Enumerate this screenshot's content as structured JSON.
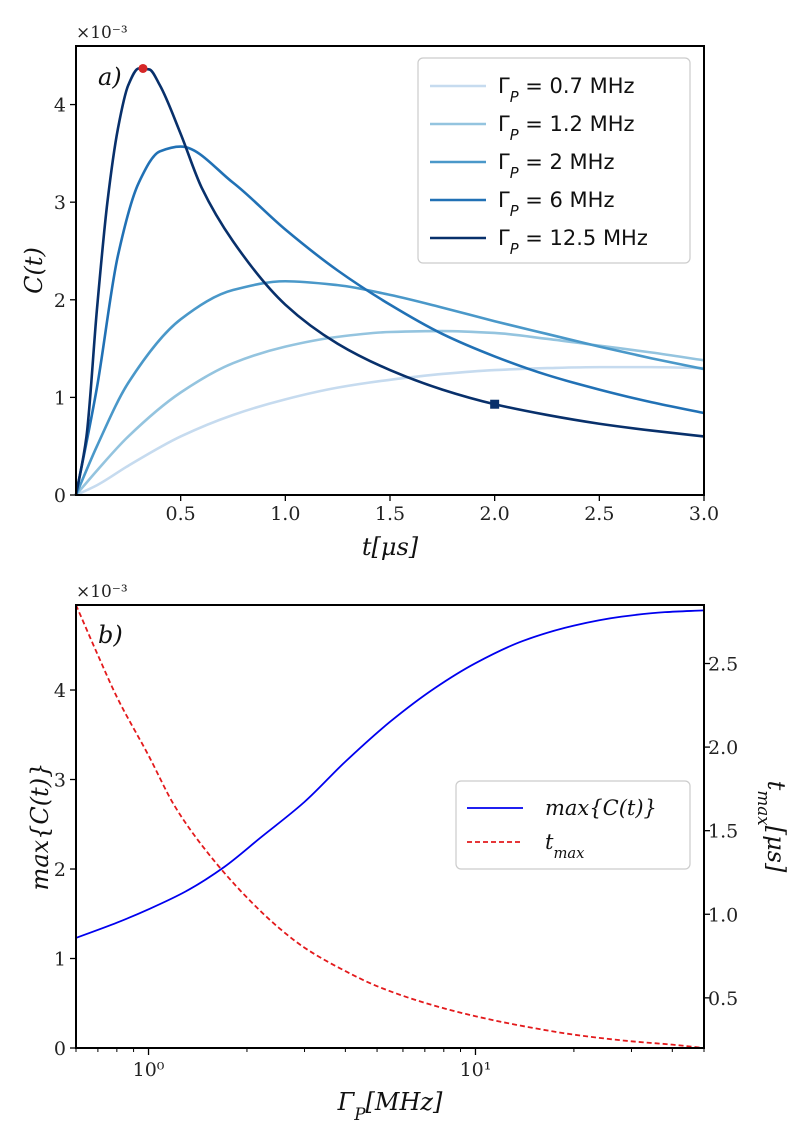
{
  "chart_data": [
    {
      "type": "line",
      "panel_label": "a)",
      "xlabel": "t[μs]",
      "ylabel": "C(t)",
      "y_offset": "×10⁻³",
      "xlim": [
        0.0,
        3.0
      ],
      "ylim": [
        0,
        4.6
      ],
      "xticks": [
        "0.5",
        "1.0",
        "1.5",
        "2.0",
        "2.5",
        "3.0"
      ],
      "yticks": [
        "0",
        "1",
        "2",
        "3",
        "4"
      ],
      "legend_position": "top-right",
      "grid": false,
      "series": [
        {
          "name": "Γ_P = 0.7 MHz",
          "color": "#c6dbef",
          "x": [
            0,
            0.1,
            0.25,
            0.5,
            0.75,
            1.0,
            1.25,
            1.5,
            1.75,
            2.0,
            2.25,
            2.5,
            2.75,
            3.0
          ],
          "y": [
            0,
            0.1,
            0.3,
            0.6,
            0.82,
            0.98,
            1.1,
            1.18,
            1.24,
            1.28,
            1.3,
            1.31,
            1.31,
            1.3
          ]
        },
        {
          "name": "Γ_P = 1.2 MHz",
          "color": "#94c4df",
          "x": [
            0,
            0.1,
            0.25,
            0.5,
            0.75,
            1.0,
            1.25,
            1.5,
            1.75,
            2.0,
            2.25,
            2.5,
            2.75,
            3.0
          ],
          "y": [
            0,
            0.25,
            0.6,
            1.05,
            1.35,
            1.52,
            1.62,
            1.67,
            1.68,
            1.66,
            1.6,
            1.53,
            1.46,
            1.38
          ]
        },
        {
          "name": "Γ_P = 2 MHz",
          "color": "#4a98c9",
          "x": [
            0,
            0.1,
            0.25,
            0.5,
            0.75,
            1.0,
            1.25,
            1.5,
            1.75,
            2.0,
            2.25,
            2.5,
            2.75,
            3.0
          ],
          "y": [
            0,
            0.5,
            1.15,
            1.8,
            2.1,
            2.19,
            2.15,
            2.05,
            1.92,
            1.78,
            1.65,
            1.52,
            1.4,
            1.29
          ]
        },
        {
          "name": "Γ_P = 6 MHz",
          "color": "#2171b5",
          "x": [
            0,
            0.1,
            0.2,
            0.3,
            0.4,
            0.5,
            0.75,
            1.0,
            1.25,
            1.5,
            1.75,
            2.0,
            2.25,
            2.5,
            2.75,
            3.0
          ],
          "y": [
            0,
            1.1,
            2.45,
            3.2,
            3.52,
            3.57,
            3.2,
            2.72,
            2.3,
            1.95,
            1.65,
            1.42,
            1.23,
            1.08,
            0.95,
            0.84
          ]
        },
        {
          "name": "Γ_P = 12.5 MHz",
          "color": "#08306b",
          "x": [
            0,
            0.05,
            0.1,
            0.15,
            0.2,
            0.25,
            0.3,
            0.35,
            0.4,
            0.5,
            0.6,
            0.75,
            1.0,
            1.25,
            1.5,
            1.75,
            2.0,
            2.25,
            2.5,
            2.75,
            3.0
          ],
          "y": [
            0,
            0.6,
            1.9,
            3.0,
            3.75,
            4.2,
            4.37,
            4.36,
            4.2,
            3.7,
            3.15,
            2.6,
            1.95,
            1.55,
            1.28,
            1.08,
            0.93,
            0.82,
            0.73,
            0.66,
            0.6
          ]
        }
      ],
      "markers": [
        {
          "x": 0.32,
          "y": 4.37,
          "shape": "circle",
          "color": "#d62728"
        },
        {
          "x": 2.0,
          "y": 0.93,
          "shape": "square",
          "color": "#08306b"
        }
      ]
    },
    {
      "type": "line",
      "panel_label": "b)",
      "xlabel": "Γ_P[MHz]",
      "ylabel": "max{C(t)}",
      "ylabel_right": "t_max[μs]",
      "y_offset": "×10⁻³",
      "xscale": "log",
      "xlim": [
        0.6,
        50
      ],
      "ylim": [
        0,
        4.95
      ],
      "ylim_right": [
        0.2,
        2.85
      ],
      "xticks": [
        {
          "value": 1,
          "label": "10⁰"
        },
        {
          "value": 10,
          "label": "10¹"
        }
      ],
      "yticks": [
        "0",
        "1",
        "2",
        "3",
        "4"
      ],
      "yticks_right": [
        "0.5",
        "1.0",
        "1.5",
        "2.0",
        "2.5"
      ],
      "legend_position": "center-right",
      "grid": false,
      "series": [
        {
          "name": "max{C(t)}",
          "color": "#0000ee",
          "style": "solid",
          "axis": "left",
          "x": [
            0.6,
            0.8,
            1.0,
            1.3,
            1.7,
            2.2,
            3.0,
            4.0,
            5.5,
            7.5,
            10,
            14,
            20,
            28,
            38,
            50
          ],
          "y": [
            1.23,
            1.4,
            1.55,
            1.75,
            2.02,
            2.35,
            2.75,
            3.2,
            3.65,
            4.02,
            4.3,
            4.55,
            4.72,
            4.82,
            4.87,
            4.89
          ]
        },
        {
          "name": "t_max",
          "color": "#e31a1c",
          "style": "dashed",
          "axis": "right",
          "x": [
            0.6,
            0.7,
            0.8,
            1.0,
            1.2,
            1.5,
            2.0,
            2.5,
            3.0,
            4.0,
            5.0,
            7.0,
            10,
            15,
            20,
            30,
            40,
            50
          ],
          "y": [
            2.85,
            2.55,
            2.3,
            1.95,
            1.65,
            1.38,
            1.1,
            0.92,
            0.8,
            0.66,
            0.57,
            0.47,
            0.39,
            0.32,
            0.28,
            0.24,
            0.22,
            0.2
          ]
        }
      ]
    }
  ]
}
